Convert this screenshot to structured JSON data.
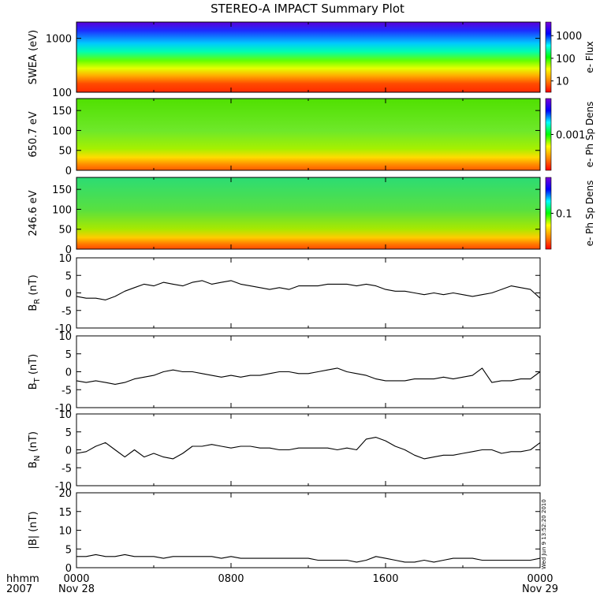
{
  "title": "STEREO-A IMPACT Summary Plot",
  "time_axis": {
    "left_label_top": "hhmm",
    "left_label_bottom": "2007",
    "ticks": [
      {
        "hhmm": "0000",
        "date": "Nov 28"
      },
      {
        "hhmm": "0800",
        "date": ""
      },
      {
        "hhmm": "1600",
        "date": ""
      },
      {
        "hhmm": "0000",
        "date": "Nov 29"
      }
    ],
    "range_hours": [
      0,
      24
    ]
  },
  "footer_timestamp": "Wed Jun  9 13:52:20 2010",
  "colors": {
    "spectrogram_scale": [
      "#7a00d8",
      "#0000ff",
      "#00ffff",
      "#00ff00",
      "#ffff00",
      "#ff8800",
      "#ff0000"
    ],
    "trace": "#000000"
  },
  "chart_data": [
    {
      "type": "heatmap",
      "ylabel": "SWEA (eV)",
      "yscale": "log",
      "ylim": [
        100,
        2000
      ],
      "yticks": [
        "100",
        "1000"
      ],
      "colorbar_label": "e- Flux",
      "colorbar_scale": "log",
      "colorbar_ticks": [
        "10",
        "100",
        "1000"
      ]
    },
    {
      "type": "heatmap",
      "ylabel": "650.7 eV",
      "ylim": [
        0,
        180
      ],
      "yticks": [
        "0",
        "50",
        "100",
        "150"
      ],
      "colorbar_label": "e- Ph Sp Dens",
      "colorbar_scale": "log",
      "colorbar_ticks": [
        "0.001"
      ]
    },
    {
      "type": "heatmap",
      "ylabel": "246.6 eV",
      "ylim": [
        0,
        180
      ],
      "yticks": [
        "0",
        "50",
        "100",
        "150"
      ],
      "colorbar_label": "e- Ph Sp Dens",
      "colorbar_scale": "log",
      "colorbar_ticks": [
        "0.1"
      ]
    },
    {
      "type": "line",
      "ylabel": "B",
      "ylabel_sub": "R",
      "ylabel_unit": " (nT)",
      "ylim": [
        -10,
        10
      ],
      "yticks": [
        "-10",
        "-5",
        "0",
        "5",
        "10"
      ],
      "x": [
        0,
        0.5,
        1,
        1.5,
        2,
        2.5,
        3,
        3.5,
        4,
        4.5,
        5,
        5.5,
        6,
        6.5,
        7,
        7.5,
        8,
        8.5,
        9,
        9.5,
        10,
        10.5,
        11,
        11.5,
        12,
        12.5,
        13,
        13.5,
        14,
        14.5,
        15,
        15.5,
        16,
        16.5,
        17,
        17.5,
        18,
        18.5,
        19,
        19.5,
        20,
        20.5,
        21,
        21.5,
        22,
        22.5,
        23,
        23.5,
        24
      ],
      "values": [
        -1,
        -1.5,
        -1.5,
        -2,
        -1,
        0.5,
        1.5,
        2.5,
        2,
        3,
        2.5,
        2,
        3,
        3.5,
        2.5,
        3,
        3.5,
        2.5,
        2,
        1.5,
        1,
        1.5,
        1,
        2,
        2,
        2,
        2.5,
        2.5,
        2.5,
        2,
        2.5,
        2,
        1,
        0.5,
        0.5,
        0,
        -0.5,
        0,
        -0.5,
        0,
        -0.5,
        -1,
        -0.5,
        0,
        1,
        2,
        1.5,
        1,
        -1.5
      ]
    },
    {
      "type": "line",
      "ylabel": "B",
      "ylabel_sub": "T",
      "ylabel_unit": " (nT)",
      "ylim": [
        -10,
        10
      ],
      "yticks": [
        "-10",
        "-5",
        "0",
        "5",
        "10"
      ],
      "x": [
        0,
        0.5,
        1,
        1.5,
        2,
        2.5,
        3,
        3.5,
        4,
        4.5,
        5,
        5.5,
        6,
        6.5,
        7,
        7.5,
        8,
        8.5,
        9,
        9.5,
        10,
        10.5,
        11,
        11.5,
        12,
        12.5,
        13,
        13.5,
        14,
        14.5,
        15,
        15.5,
        16,
        16.5,
        17,
        17.5,
        18,
        18.5,
        19,
        19.5,
        20,
        20.5,
        21,
        21.5,
        22,
        22.5,
        23,
        23.5,
        24
      ],
      "values": [
        -2.5,
        -3,
        -2.5,
        -3,
        -3.5,
        -3,
        -2,
        -1.5,
        -1,
        0,
        0.5,
        0,
        0,
        -0.5,
        -1,
        -1.5,
        -1,
        -1.5,
        -1,
        -1,
        -0.5,
        0,
        0,
        -0.5,
        -0.5,
        0,
        0.5,
        1,
        0,
        -0.5,
        -1,
        -2,
        -2.5,
        -2.5,
        -2.5,
        -2,
        -2,
        -2,
        -1.5,
        -2,
        -1.5,
        -1,
        1,
        -3,
        -2.5,
        -2.5,
        -2,
        -2,
        0
      ]
    },
    {
      "type": "line",
      "ylabel": "B",
      "ylabel_sub": "N",
      "ylabel_unit": " (nT)",
      "ylim": [
        -10,
        10
      ],
      "yticks": [
        "-10",
        "-5",
        "0",
        "5",
        "10"
      ],
      "x": [
        0,
        0.5,
        1,
        1.5,
        2,
        2.5,
        3,
        3.5,
        4,
        4.5,
        5,
        5.5,
        6,
        6.5,
        7,
        7.5,
        8,
        8.5,
        9,
        9.5,
        10,
        10.5,
        11,
        11.5,
        12,
        12.5,
        13,
        13.5,
        14,
        14.5,
        15,
        15.5,
        16,
        16.5,
        17,
        17.5,
        18,
        18.5,
        19,
        19.5,
        20,
        20.5,
        21,
        21.5,
        22,
        22.5,
        23,
        23.5,
        24
      ],
      "values": [
        -1,
        -0.5,
        1,
        2,
        0,
        -2,
        0,
        -2,
        -1,
        -2,
        -2.5,
        -1,
        1,
        1,
        1.5,
        1,
        0.5,
        1,
        1,
        0.5,
        0.5,
        0,
        0,
        0.5,
        0.5,
        0.5,
        0.5,
        0,
        0.5,
        0,
        3,
        3.5,
        2.5,
        1,
        0,
        -1.5,
        -2.5,
        -2,
        -1.5,
        -1.5,
        -1,
        -0.5,
        0,
        0,
        -1,
        -0.5,
        -0.5,
        0,
        2
      ]
    },
    {
      "type": "line",
      "ylabel": "|B| (nT)",
      "ylim": [
        0,
        20
      ],
      "yticks": [
        "0",
        "5",
        "10",
        "15",
        "20"
      ],
      "x": [
        0,
        0.5,
        1,
        1.5,
        2,
        2.5,
        3,
        3.5,
        4,
        4.5,
        5,
        5.5,
        6,
        6.5,
        7,
        7.5,
        8,
        8.5,
        9,
        9.5,
        10,
        10.5,
        11,
        11.5,
        12,
        12.5,
        13,
        13.5,
        14,
        14.5,
        15,
        15.5,
        16,
        16.5,
        17,
        17.5,
        18,
        18.5,
        19,
        19.5,
        20,
        20.5,
        21,
        21.5,
        22,
        22.5,
        23,
        23.5,
        24
      ],
      "values": [
        3,
        3,
        3.5,
        3,
        3,
        3.5,
        3,
        3,
        3,
        2.5,
        3,
        3,
        3,
        3,
        3,
        2.5,
        3,
        2.5,
        2.5,
        2.5,
        2.5,
        2.5,
        2.5,
        2.5,
        2.5,
        2,
        2,
        2,
        2,
        1.5,
        2,
        3,
        2.5,
        2,
        1.5,
        1.5,
        2,
        1.5,
        2,
        2.5,
        2.5,
        2.5,
        2,
        2,
        2,
        2,
        2,
        2,
        2.5
      ]
    }
  ]
}
